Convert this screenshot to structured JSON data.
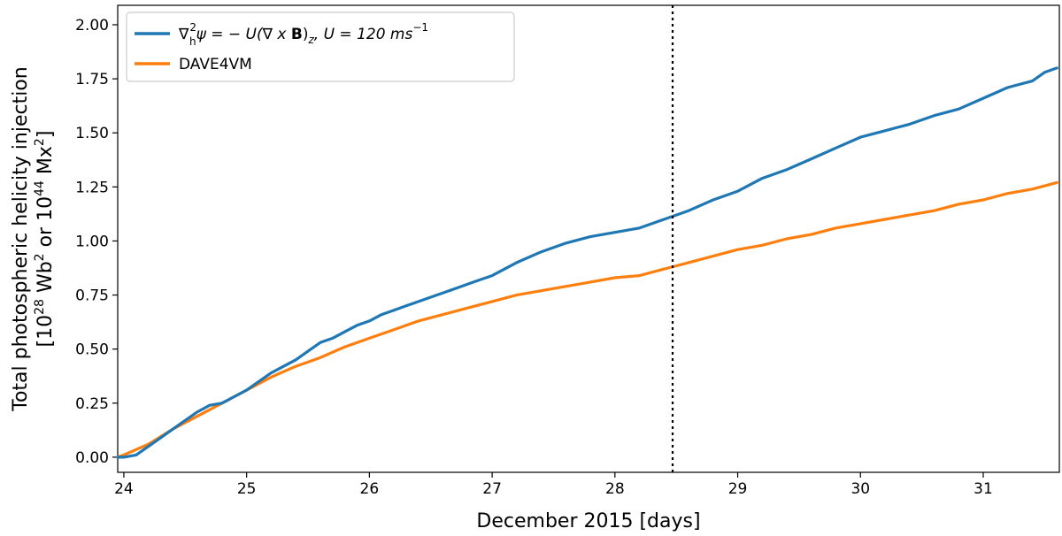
{
  "chart_data": {
    "type": "line",
    "title": "",
    "xlabel": "December 2015 [days]",
    "ylabel_line1": "Total photospheric helicity injection",
    "ylabel_line2": "[10^28 Wb^2 or 10^44 Mx^2]",
    "ylabel_parts": {
      "open": "[10",
      "exp1": "28",
      "mid": " Wb",
      "exp2": "2",
      "or": " or 10",
      "exp3": "44",
      "unit": " Mx",
      "exp4": "2",
      "close": "]"
    },
    "xlim": [
      23.95,
      31.62
    ],
    "ylim": [
      -0.07,
      2.09
    ],
    "xticks": [
      24,
      25,
      26,
      27,
      28,
      29,
      30,
      31
    ],
    "yticks": [
      0.0,
      0.25,
      0.5,
      0.75,
      1.0,
      1.25,
      1.5,
      1.75,
      2.0
    ],
    "ytick_labels": [
      "0.00",
      "0.25",
      "0.50",
      "0.75",
      "1.00",
      "1.25",
      "1.50",
      "1.75",
      "2.00"
    ],
    "grid": false,
    "legend_position": "top-left",
    "vline_x": 28.47,
    "legend_entry1_parts": {
      "nabla": "∇",
      "h_sub": "h",
      "sq_sup": "2",
      "rest": "ψ = − U(∇ x ",
      "bold_B": "B",
      "close": ")",
      "z_sub": "z",
      "u_part": ", U =  120  ms",
      "exp": "−1"
    },
    "series": [
      {
        "name": "∇h²ψ = −U(∇ x B)z, U = 120 ms−1",
        "color": "#1f77b4",
        "x": [
          23.95,
          24.0,
          24.1,
          24.2,
          24.3,
          24.4,
          24.5,
          24.6,
          24.7,
          24.8,
          24.9,
          25.0,
          25.1,
          25.2,
          25.3,
          25.4,
          25.5,
          25.6,
          25.7,
          25.8,
          25.9,
          26.0,
          26.1,
          26.2,
          26.3,
          26.4,
          26.5,
          26.6,
          26.7,
          26.8,
          26.9,
          27.0,
          27.2,
          27.4,
          27.6,
          27.8,
          28.0,
          28.2,
          28.3,
          28.4,
          28.5,
          28.6,
          28.8,
          29.0,
          29.2,
          29.4,
          29.6,
          29.8,
          30.0,
          30.2,
          30.4,
          30.6,
          30.8,
          31.0,
          31.2,
          31.4,
          31.5,
          31.6
        ],
        "values": [
          0.0,
          0.0,
          0.01,
          0.05,
          0.09,
          0.13,
          0.17,
          0.21,
          0.24,
          0.25,
          0.28,
          0.31,
          0.35,
          0.39,
          0.42,
          0.45,
          0.49,
          0.53,
          0.55,
          0.58,
          0.61,
          0.63,
          0.66,
          0.68,
          0.7,
          0.72,
          0.74,
          0.76,
          0.78,
          0.8,
          0.82,
          0.84,
          0.9,
          0.95,
          0.99,
          1.02,
          1.04,
          1.06,
          1.08,
          1.1,
          1.12,
          1.14,
          1.19,
          1.23,
          1.29,
          1.33,
          1.38,
          1.43,
          1.48,
          1.51,
          1.54,
          1.58,
          1.61,
          1.66,
          1.71,
          1.74,
          1.78,
          1.8
        ]
      },
      {
        "name": "DAVE4VM",
        "color": "#ff7f0e",
        "x": [
          23.95,
          24.0,
          24.2,
          24.4,
          24.6,
          24.8,
          25.0,
          25.2,
          25.4,
          25.6,
          25.8,
          26.0,
          26.2,
          26.4,
          26.6,
          26.8,
          27.0,
          27.2,
          27.4,
          27.6,
          27.8,
          28.0,
          28.2,
          28.4,
          28.6,
          28.8,
          29.0,
          29.2,
          29.4,
          29.6,
          29.8,
          30.0,
          30.2,
          30.4,
          30.6,
          30.8,
          31.0,
          31.2,
          31.4,
          31.6
        ],
        "values": [
          0.0,
          0.01,
          0.06,
          0.13,
          0.19,
          0.25,
          0.31,
          0.37,
          0.42,
          0.46,
          0.51,
          0.55,
          0.59,
          0.63,
          0.66,
          0.69,
          0.72,
          0.75,
          0.77,
          0.79,
          0.81,
          0.83,
          0.84,
          0.87,
          0.9,
          0.93,
          0.96,
          0.98,
          1.01,
          1.03,
          1.06,
          1.08,
          1.1,
          1.12,
          1.14,
          1.17,
          1.19,
          1.22,
          1.24,
          1.27
        ]
      }
    ]
  }
}
